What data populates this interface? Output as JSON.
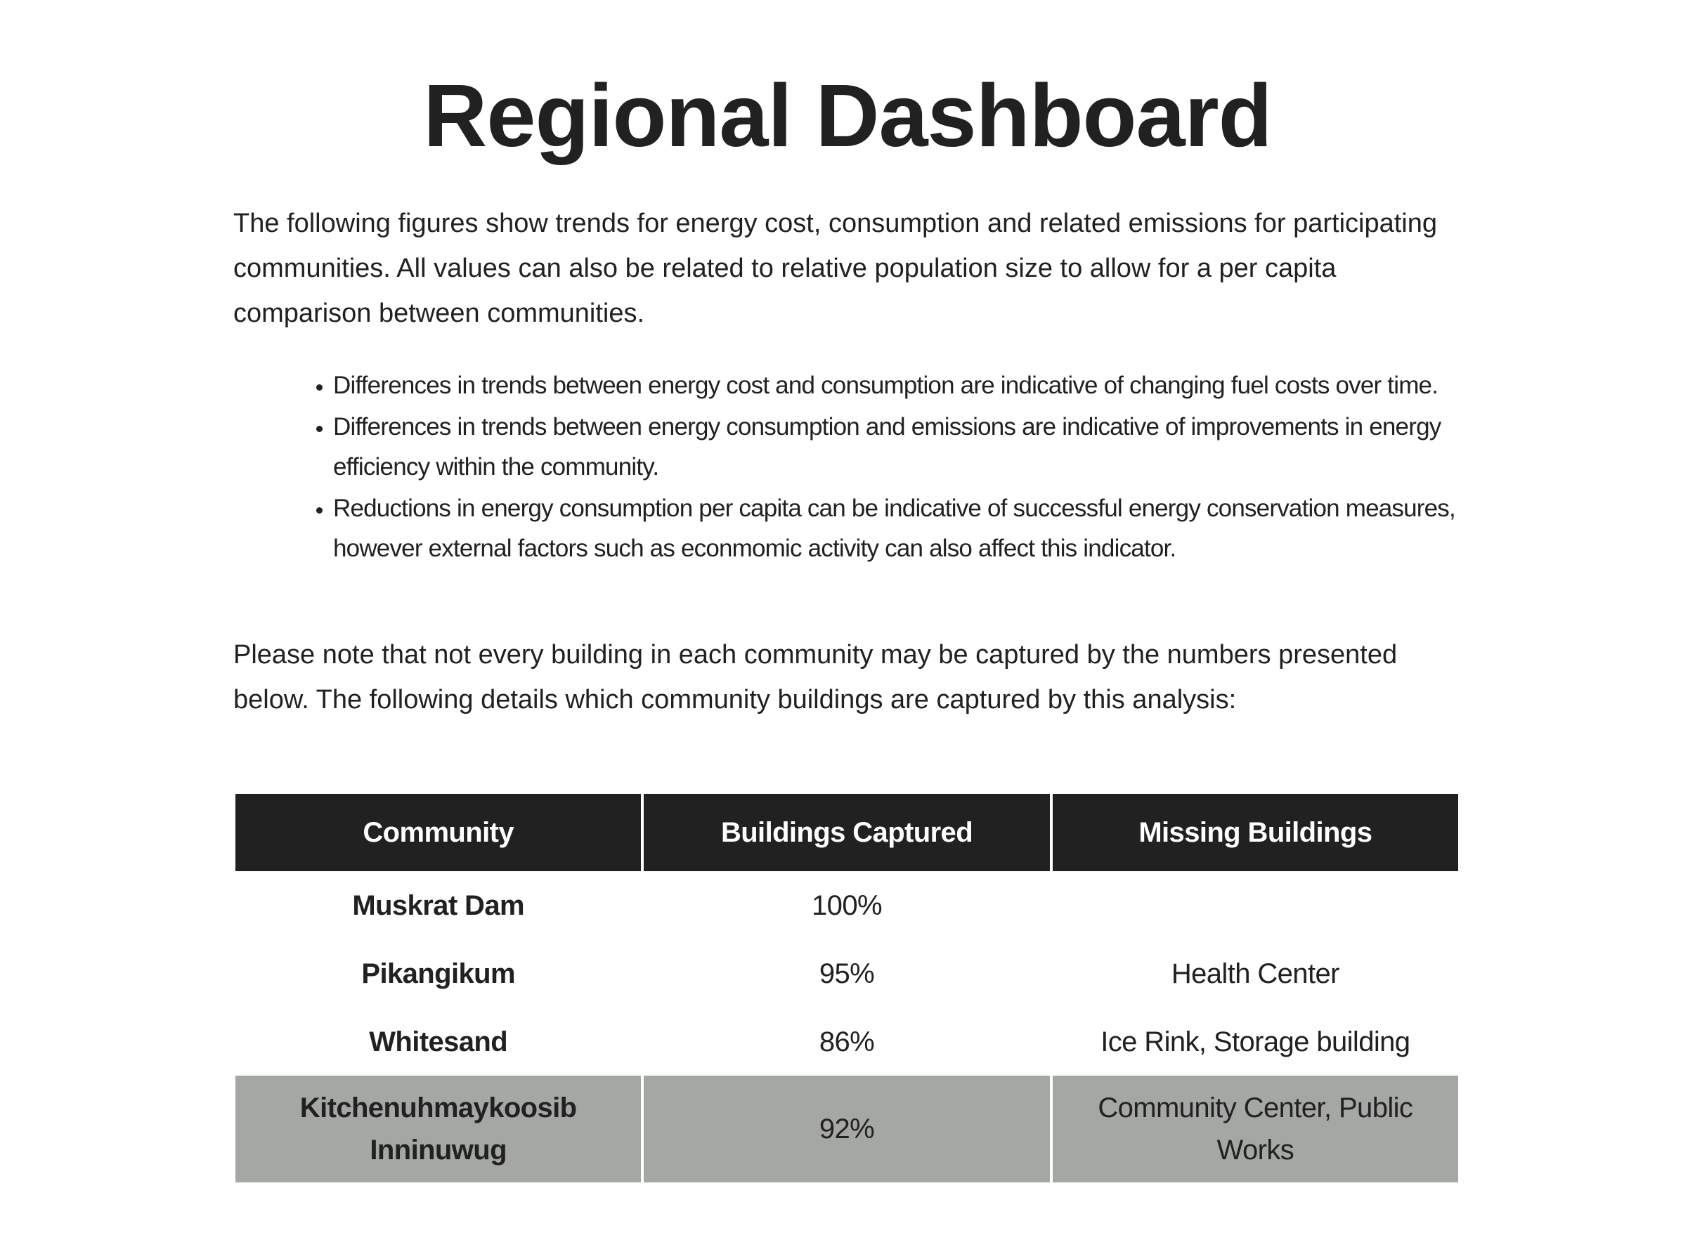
{
  "title": "Regional Dashboard",
  "intro": "The following figures show trends for energy cost, consumption and related emissions for participating communities. All values can also be related to relative population size to allow for a per capita comparison between communities.",
  "bullets": [
    "Differences in trends between energy cost and consumption are indicative of changing fuel costs over time.",
    "Differences in trends between energy consumption and emissions are indicative of improvements in energy efficiency within the community.",
    "Reductions in energy consumption per capita can be indicative of successful energy conservation measures, however external factors such as econmomic activity can also affect this indicator."
  ],
  "note": "Please note that not every building in each community may be captured by the numbers presented below. The following details which community buildings are captured by this analysis:",
  "table": {
    "headers": [
      "Community",
      "Buildings Captured",
      "Missing Buildings"
    ],
    "rows": [
      {
        "community": "Muskrat Dam",
        "captured": "100%",
        "missing": ""
      },
      {
        "community": "Pikangikum",
        "captured": "95%",
        "missing": "Health Center"
      },
      {
        "community": "Whitesand",
        "captured": "86%",
        "missing": "Ice Rink, Storage building"
      },
      {
        "community": "Kitchenuhmaykoosib Inninuwug",
        "captured": "92%",
        "missing": "Community Center, Public Works"
      }
    ]
  },
  "colors": {
    "header_background": "#212121",
    "highlight_row": "#a5a7a4",
    "text": "#212121"
  }
}
